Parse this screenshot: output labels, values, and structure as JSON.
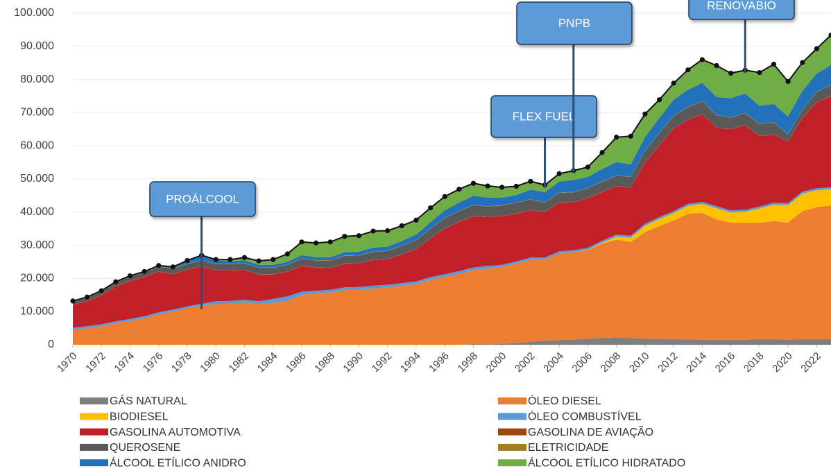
{
  "chart_data": {
    "type": "stacked_area",
    "x": [
      1970,
      1971,
      1972,
      1973,
      1974,
      1975,
      1976,
      1977,
      1978,
      1979,
      1980,
      1981,
      1982,
      1983,
      1984,
      1985,
      1986,
      1987,
      1988,
      1989,
      1990,
      1991,
      1992,
      1993,
      1994,
      1995,
      1996,
      1997,
      1998,
      1999,
      2000,
      2001,
      2002,
      2003,
      2004,
      2005,
      2006,
      2007,
      2008,
      2009,
      2010,
      2011,
      2012,
      2013,
      2014,
      2015,
      2016,
      2017,
      2018,
      2019,
      2020,
      2021,
      2022,
      2023
    ],
    "xlim": [
      1970,
      2023
    ],
    "xticks": [
      1970,
      1972,
      1974,
      1976,
      1978,
      1980,
      1982,
      1984,
      1986,
      1988,
      1990,
      1992,
      1994,
      1996,
      1998,
      2000,
      2002,
      2004,
      2006,
      2008,
      2010,
      2012,
      2014,
      2016,
      2018,
      2020,
      2022
    ],
    "ylim": [
      0,
      100000
    ],
    "yticks": [
      0,
      {
        "value": 10000,
        "label": "10.000"
      },
      {
        "value": 20000,
        "label": "20.000"
      },
      {
        "value": 30000,
        "label": "30.000"
      },
      {
        "value": 40000,
        "label": "40.000"
      },
      {
        "value": 50000,
        "label": "50.000"
      },
      {
        "value": 60000,
        "label": "60.000"
      },
      {
        "value": 70000,
        "label": "70.000"
      },
      {
        "value": 80000,
        "label": "80.000"
      },
      {
        "value": 90000,
        "label": "90.000"
      },
      {
        "value": 100000,
        "label": "100.000"
      }
    ],
    "grid": true,
    "series": [
      {
        "name": "GÁS NATURAL",
        "color": "#7f7f7f",
        "values": [
          0,
          0,
          0,
          0,
          0,
          0,
          0,
          0,
          0,
          0,
          0,
          0,
          0,
          0,
          0,
          0,
          0,
          0,
          0,
          0,
          0,
          0,
          0,
          0,
          0,
          0,
          0,
          0,
          100,
          100,
          300,
          500,
          900,
          1200,
          1400,
          1600,
          1800,
          2100,
          2200,
          2000,
          1800,
          1800,
          1700,
          1600,
          1500,
          1500,
          1500,
          1500,
          1700,
          1700,
          1500,
          1700,
          1700,
          1700
        ]
      },
      {
        "name": "ÓLEO DIESEL",
        "color": "#ed7d31",
        "values": [
          4500,
          5000,
          5600,
          6500,
          7200,
          8000,
          9200,
          10000,
          11000,
          11800,
          12300,
          12400,
          12800,
          12300,
          12600,
          13300,
          15000,
          15500,
          15800,
          16500,
          16600,
          17000,
          17300,
          17800,
          18300,
          19600,
          20500,
          21400,
          22400,
          22900,
          23200,
          24000,
          24800,
          24500,
          26200,
          26300,
          26700,
          28400,
          29500,
          29000,
          32200,
          34000,
          35800,
          37900,
          38300,
          36300,
          35300,
          35300,
          35100,
          35600,
          35300,
          38600,
          39800,
          40300
        ]
      },
      {
        "name": "BIODIESEL",
        "color": "#ffc000",
        "values": [
          0,
          0,
          0,
          0,
          0,
          0,
          0,
          0,
          0,
          0,
          0,
          0,
          0,
          0,
          0,
          0,
          0,
          0,
          0,
          0,
          0,
          0,
          0,
          0,
          0,
          0,
          0,
          0,
          0,
          0,
          0,
          0,
          0,
          0,
          0,
          0,
          100,
          300,
          900,
          1300,
          1900,
          2100,
          2200,
          2400,
          2700,
          3400,
          3100,
          3300,
          4300,
          4900,
          5300,
          5300,
          5100,
          4900
        ]
      },
      {
        "name": "ÓLEO COMBUSTÍVEL",
        "color": "#5b9bd5",
        "values": [
          600,
          600,
          600,
          600,
          600,
          600,
          600,
          600,
          600,
          600,
          800,
          800,
          800,
          800,
          1200,
          1300,
          1000,
          800,
          800,
          800,
          800,
          800,
          800,
          800,
          800,
          800,
          800,
          800,
          800,
          800,
          600,
          600,
          600,
          600,
          600,
          600,
          600,
          600,
          600,
          600,
          600,
          600,
          600,
          600,
          600,
          600,
          600,
          600,
          600,
          600,
          600,
          600,
          600,
          600
        ]
      },
      {
        "name": "GASOLINA AUTOMOTIVA",
        "color": "#c0202a",
        "values": [
          6900,
          7500,
          8700,
          10400,
          11400,
          11800,
          12200,
          10700,
          11000,
          11200,
          9300,
          9200,
          8900,
          8100,
          7400,
          7400,
          7800,
          6900,
          6500,
          7100,
          7100,
          7700,
          7700,
          8600,
          9700,
          11700,
          13800,
          14800,
          15400,
          14700,
          14700,
          14400,
          14300,
          13700,
          14600,
          14400,
          15000,
          14600,
          14600,
          14500,
          18500,
          21600,
          24900,
          25300,
          26400,
          23600,
          24500,
          25500,
          21200,
          20600,
          18500,
          22300,
          25900,
          27400
        ]
      },
      {
        "name": "GASOLINA DE AVIAÇÃO",
        "color": "#9e480e",
        "values": [
          100,
          100,
          100,
          100,
          100,
          100,
          100,
          100,
          100,
          100,
          100,
          100,
          100,
          100,
          100,
          100,
          100,
          100,
          100,
          100,
          100,
          100,
          100,
          100,
          100,
          100,
          100,
          100,
          100,
          100,
          100,
          100,
          100,
          100,
          100,
          100,
          100,
          100,
          100,
          100,
          100,
          100,
          100,
          100,
          100,
          100,
          100,
          100,
          100,
          100,
          100,
          100,
          100,
          100
        ]
      },
      {
        "name": "QUEROSENE",
        "color": "#595959",
        "values": [
          800,
          900,
          1000,
          1100,
          1200,
          1300,
          1400,
          1500,
          1600,
          1700,
          1800,
          1800,
          1900,
          1900,
          1900,
          2000,
          2100,
          2100,
          2200,
          2300,
          2300,
          2400,
          2400,
          2500,
          2600,
          2800,
          3000,
          3200,
          3300,
          3100,
          3100,
          3200,
          3100,
          2800,
          2900,
          3000,
          2900,
          3000,
          3100,
          3100,
          3400,
          3600,
          3700,
          3700,
          3800,
          3700,
          3400,
          3500,
          3600,
          3500,
          2000,
          2300,
          3000,
          3300
        ]
      },
      {
        "name": "ELETRICIDADE",
        "color": "#a07f1f",
        "values": [
          100,
          100,
          100,
          100,
          100,
          100,
          100,
          100,
          100,
          100,
          100,
          100,
          100,
          100,
          100,
          100,
          100,
          100,
          100,
          100,
          100,
          100,
          100,
          100,
          100,
          100,
          100,
          100,
          100,
          100,
          100,
          100,
          100,
          100,
          100,
          100,
          100,
          100,
          100,
          100,
          100,
          100,
          100,
          100,
          100,
          100,
          100,
          100,
          100,
          100,
          100,
          100,
          100,
          100
        ]
      },
      {
        "name": "ÁLCOOL ETÍLICO ANIDRO",
        "color": "#2271bb",
        "values": [
          200,
          200,
          200,
          200,
          200,
          200,
          300,
          500,
          1000,
          1500,
          1000,
          800,
          900,
          800,
          800,
          800,
          900,
          900,
          900,
          1000,
          1100,
          1200,
          1200,
          1400,
          1600,
          1900,
          2200,
          2500,
          2700,
          2600,
          2300,
          2200,
          2900,
          3000,
          3300,
          3600,
          3300,
          3800,
          4000,
          3700,
          4000,
          4500,
          4800,
          5200,
          5500,
          5400,
          5800,
          5900,
          5400,
          5500,
          5500,
          5600,
          5500,
          6000
        ]
      },
      {
        "name": "ÁLCOOL ETÍLICO HIDRATADO",
        "color": "#70ad47",
        "values": [
          0,
          0,
          0,
          0,
          0,
          0,
          0,
          0,
          0,
          0,
          300,
          500,
          800,
          1200,
          1600,
          2400,
          4000,
          4300,
          4600,
          4800,
          4800,
          5000,
          4800,
          4600,
          4400,
          4300,
          4200,
          4000,
          3800,
          3500,
          3100,
          2700,
          2500,
          2200,
          2400,
          2800,
          3000,
          5000,
          7500,
          8500,
          7000,
          5500,
          5000,
          6000,
          7000,
          9500,
          7500,
          7000,
          10000,
          12000,
          10500,
          8500,
          7500,
          9000
        ]
      }
    ],
    "annotations": [
      {
        "text": "PROÁLCOOL",
        "x": 1979
      },
      {
        "text": "FLEX FUEL",
        "x": 2003
      },
      {
        "text": "PNPB",
        "x": 2005
      },
      {
        "text": "RENOVABIO",
        "x": 2017
      }
    ]
  }
}
